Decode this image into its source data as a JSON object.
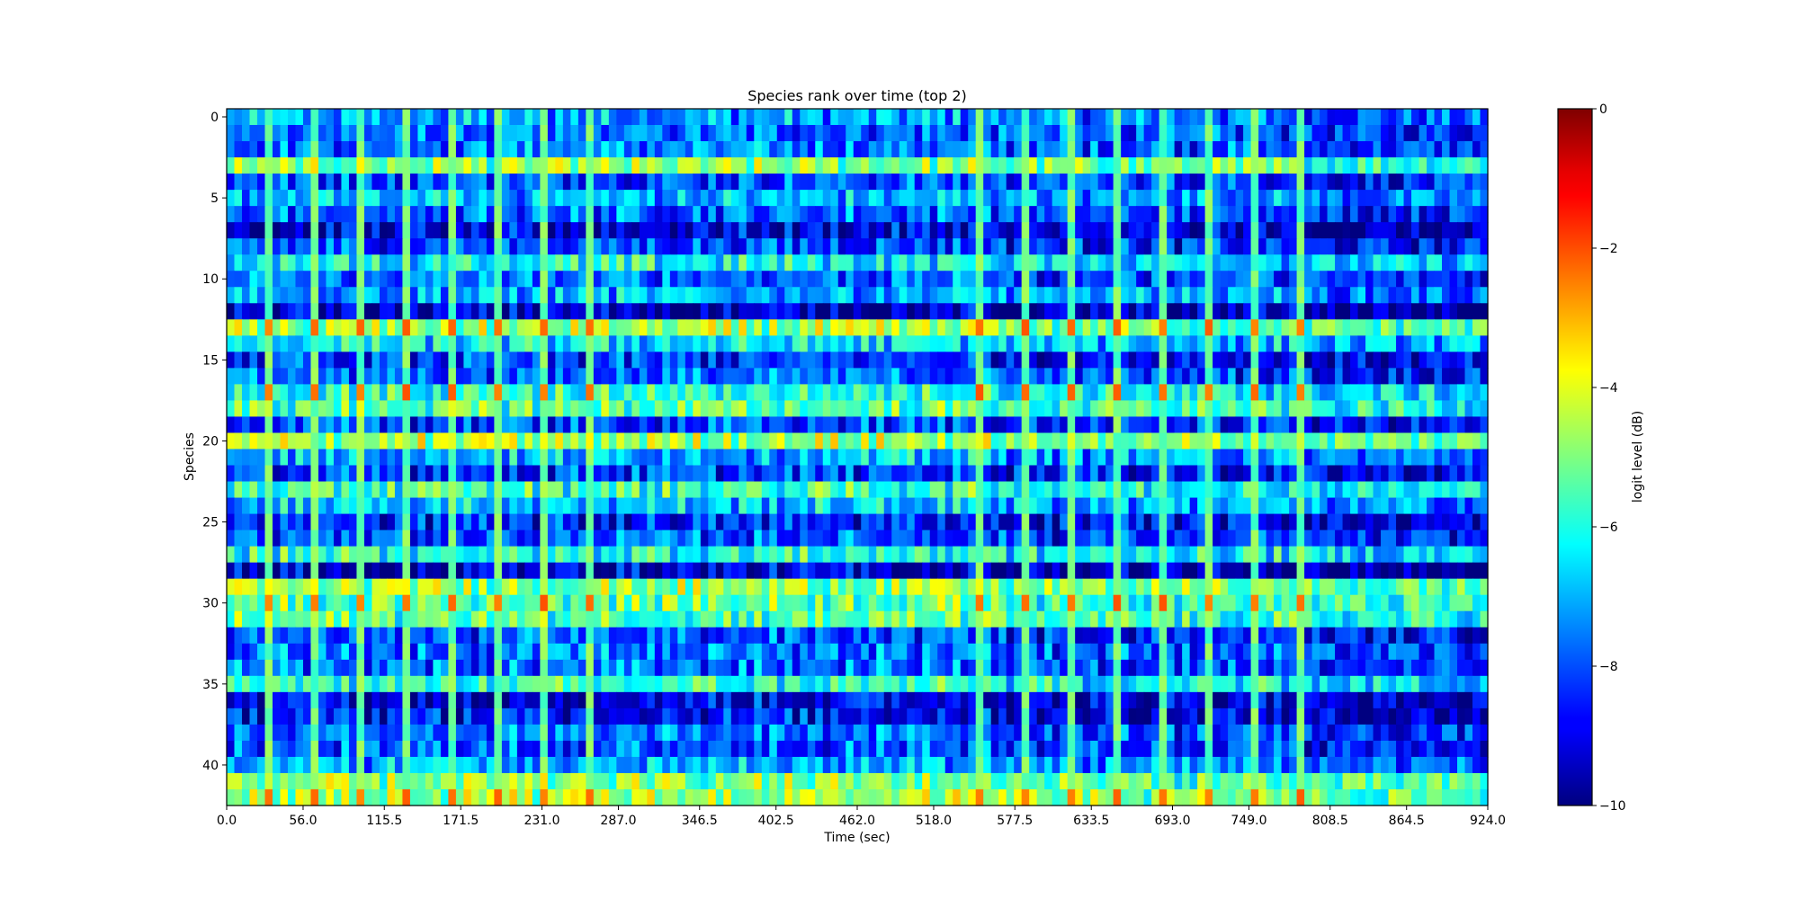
{
  "chart_data": {
    "type": "heatmap",
    "title": "Species rank over time (top 2)",
    "xlabel": "Time (sec)",
    "ylabel": "Species",
    "colorbar_label": "logit level (dB)",
    "colormap": "jet",
    "xlim": [
      0.0,
      924.0
    ],
    "ylim": [
      42.5,
      -0.5
    ],
    "n_rows": 43,
    "n_cols": 165,
    "x_ticks": [
      "0.0",
      "56.0",
      "115.5",
      "171.5",
      "231.0",
      "287.0",
      "346.5",
      "402.5",
      "462.0",
      "518.0",
      "577.5",
      "633.5",
      "693.0",
      "749.0",
      "808.5",
      "864.5",
      "924.0"
    ],
    "x_tick_values": [
      0.0,
      56.0,
      115.5,
      171.5,
      231.0,
      287.0,
      346.5,
      402.5,
      462.0,
      518.0,
      577.5,
      633.5,
      693.0,
      749.0,
      808.5,
      864.5,
      924.0
    ],
    "y_ticks": [
      "0",
      "5",
      "10",
      "15",
      "20",
      "25",
      "30",
      "35",
      "40"
    ],
    "y_tick_values": [
      0,
      5,
      10,
      15,
      20,
      25,
      30,
      35,
      40
    ],
    "colorbar_ticks": [
      "0",
      "−2",
      "−4",
      "−6",
      "−8",
      "−10"
    ],
    "colorbar_tick_values": [
      0,
      -2,
      -4,
      -6,
      -8,
      -10
    ],
    "clim": [
      -10,
      0
    ],
    "row_base_levels": [
      -7.5,
      -8.0,
      -7.8,
      -5.3,
      -8.2,
      -7.3,
      -8.0,
      -9.3,
      -8.3,
      -6.5,
      -8.0,
      -7.3,
      -9.6,
      -5.1,
      -6.8,
      -8.6,
      -8.1,
      -6.2,
      -5.7,
      -8.4,
      -4.9,
      -7.2,
      -8.5,
      -6.0,
      -7.1,
      -8.8,
      -8.2,
      -6.2,
      -9.5,
      -5.1,
      -5.5,
      -5.7,
      -8.3,
      -7.8,
      -8.0,
      -6.2,
      -9.1,
      -8.9,
      -8.0,
      -8.2,
      -7.4,
      -5.3,
      -5.0
    ],
    "peak_columns": [
      5,
      11,
      17,
      23,
      29,
      35,
      41,
      47,
      98,
      104,
      110,
      116,
      122,
      128,
      134,
      140
    ],
    "peak_rows": [
      13,
      17,
      30,
      42
    ]
  }
}
